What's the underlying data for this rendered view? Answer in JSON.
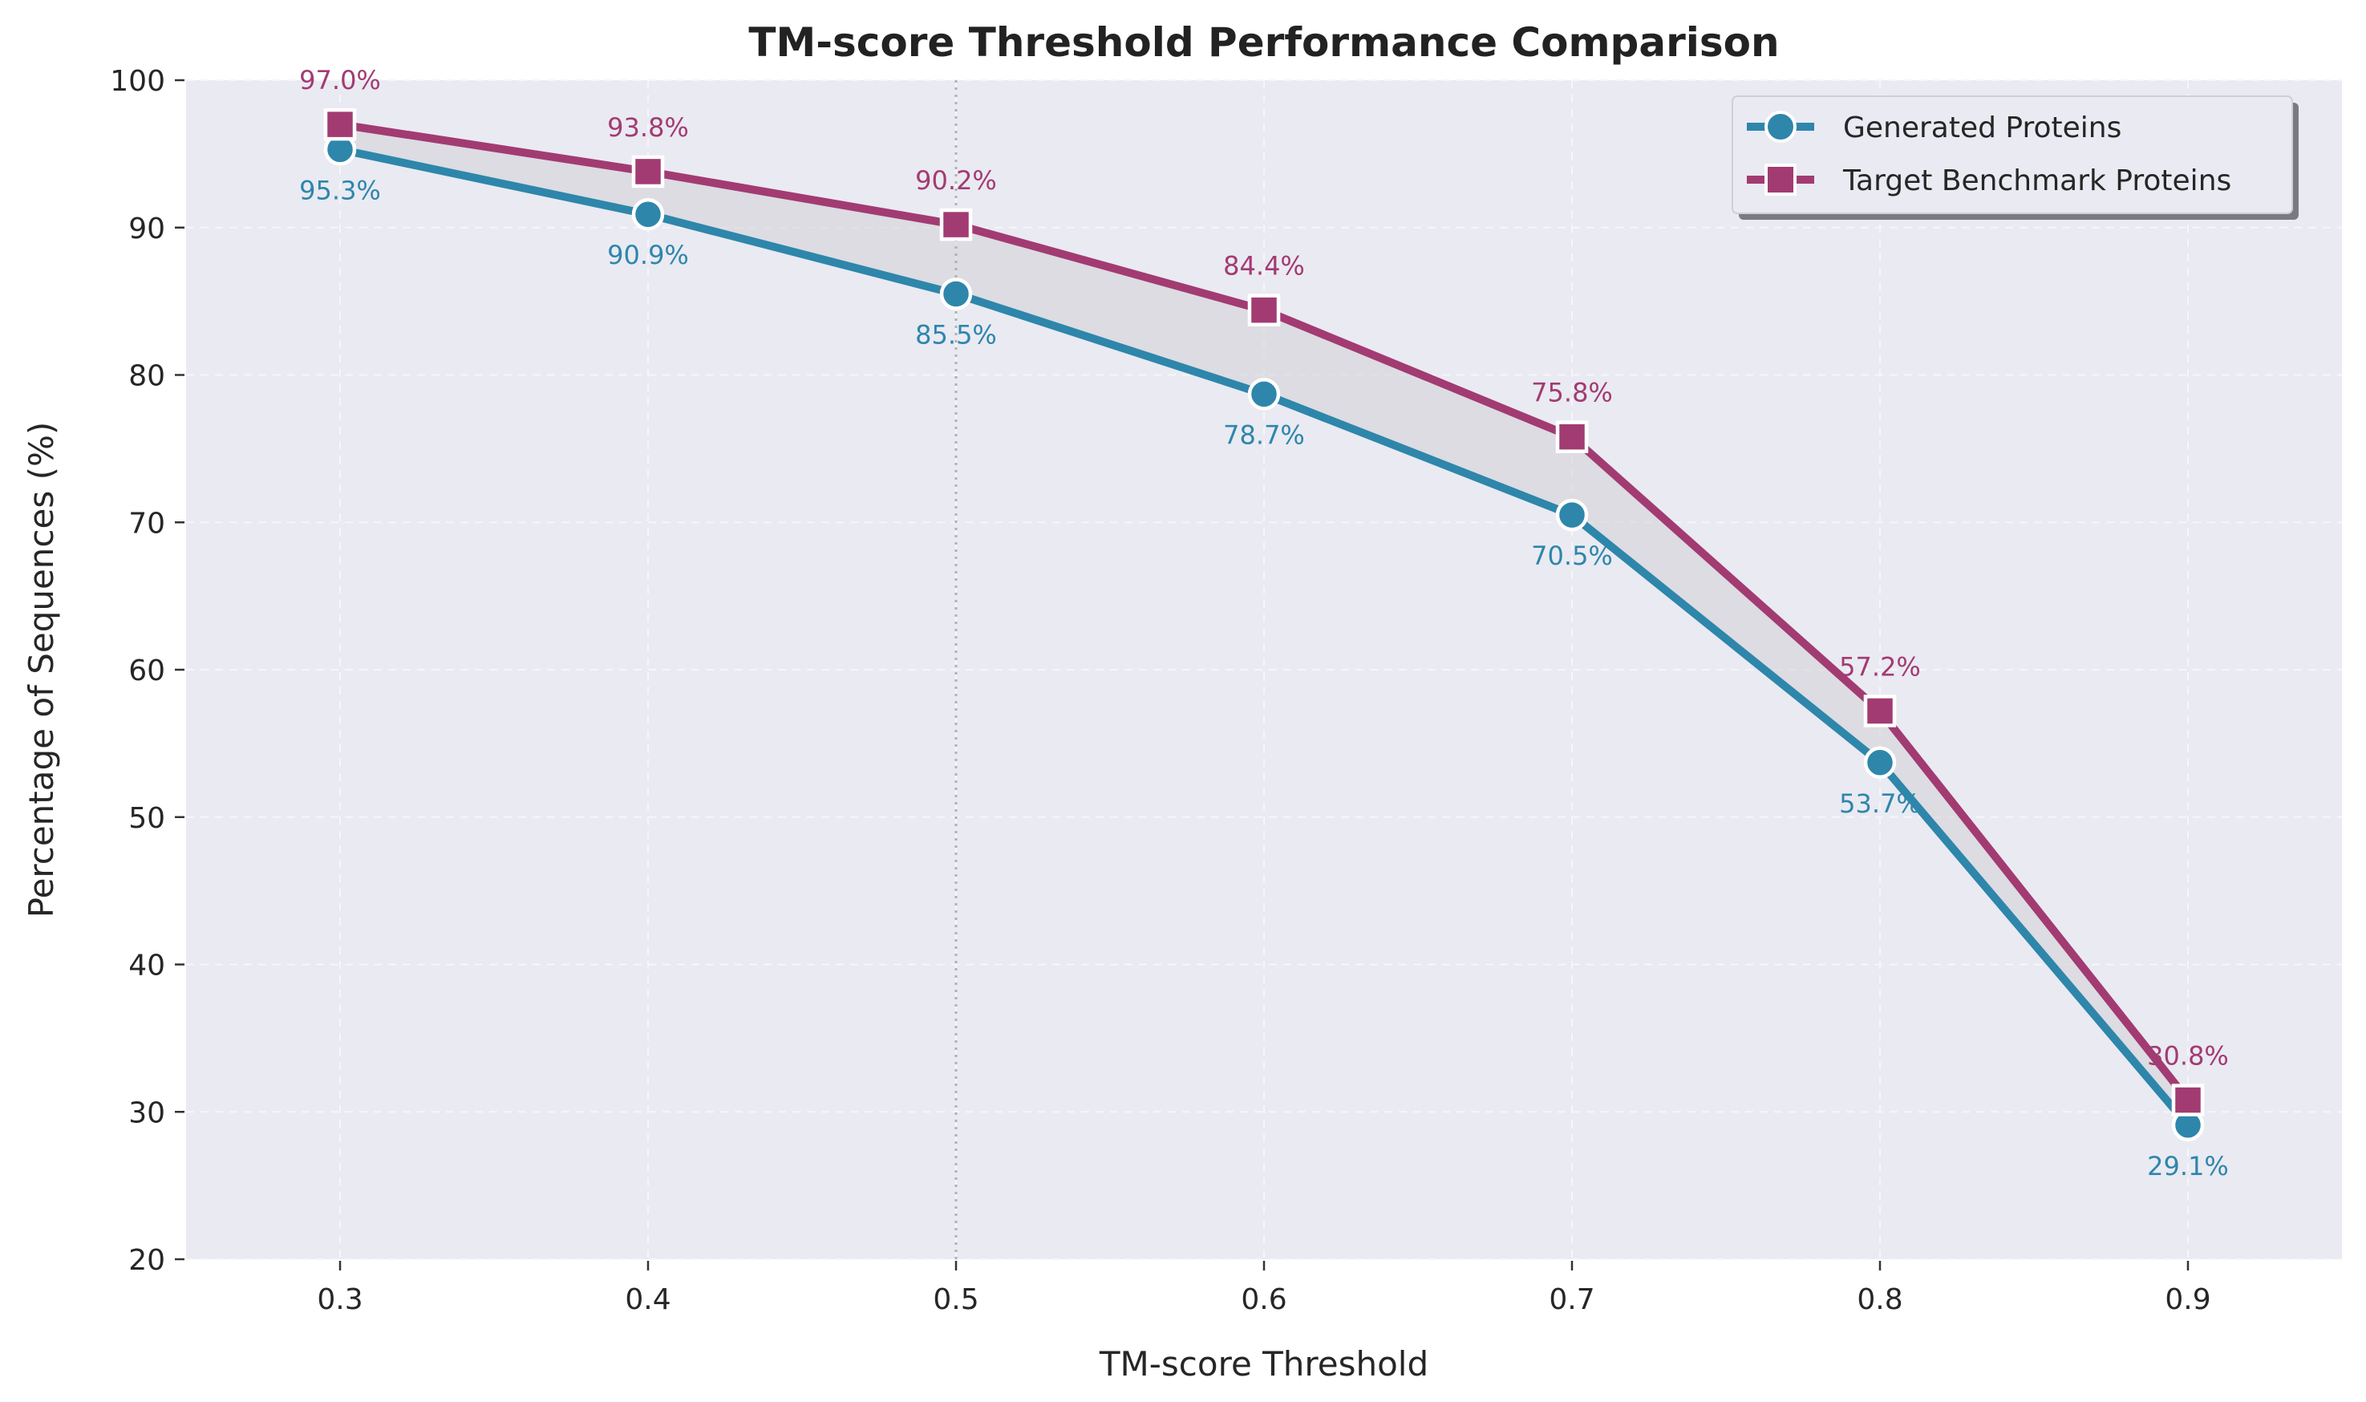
{
  "chart_data": {
    "type": "line",
    "title": "TM-score Threshold Performance Comparison",
    "xlabel": "TM-score Threshold",
    "ylabel": "Percentage of Sequences (%)",
    "x": [
      0.3,
      0.4,
      0.5,
      0.6,
      0.7,
      0.8,
      0.9
    ],
    "x_tick_labels": [
      "0.3",
      "0.4",
      "0.5",
      "0.6",
      "0.7",
      "0.8",
      "0.9"
    ],
    "xlim": [
      0.25,
      0.95
    ],
    "ylim": [
      20,
      100
    ],
    "y_ticks": [
      20,
      30,
      40,
      50,
      60,
      70,
      80,
      90,
      100
    ],
    "grid": true,
    "legend_position": "top-right",
    "reference_line_x": 0.5,
    "shaded_between_series": true,
    "series": [
      {
        "name": "Generated Proteins",
        "values": [
          95.3,
          90.9,
          85.5,
          78.7,
          70.5,
          53.7,
          29.1
        ],
        "data_labels": [
          "95.3%",
          "90.9%",
          "85.5%",
          "78.7%",
          "70.5%",
          "53.7%",
          "29.1%"
        ],
        "color": "#2e86ab",
        "marker": "circle",
        "label_position": "below"
      },
      {
        "name": "Target Benchmark Proteins",
        "values": [
          97.0,
          93.8,
          90.2,
          84.4,
          75.8,
          57.2,
          30.8
        ],
        "data_labels": [
          "97.0%",
          "93.8%",
          "90.2%",
          "84.4%",
          "75.8%",
          "57.2%",
          "30.8%"
        ],
        "color": "#a23b72",
        "marker": "square",
        "label_position": "above"
      }
    ],
    "colors": {
      "plot_background": "#eaeaf2",
      "grid": "#f5f5fa",
      "fill_between": "#d0d0d6",
      "reference_line": "#b0b0b0"
    }
  }
}
